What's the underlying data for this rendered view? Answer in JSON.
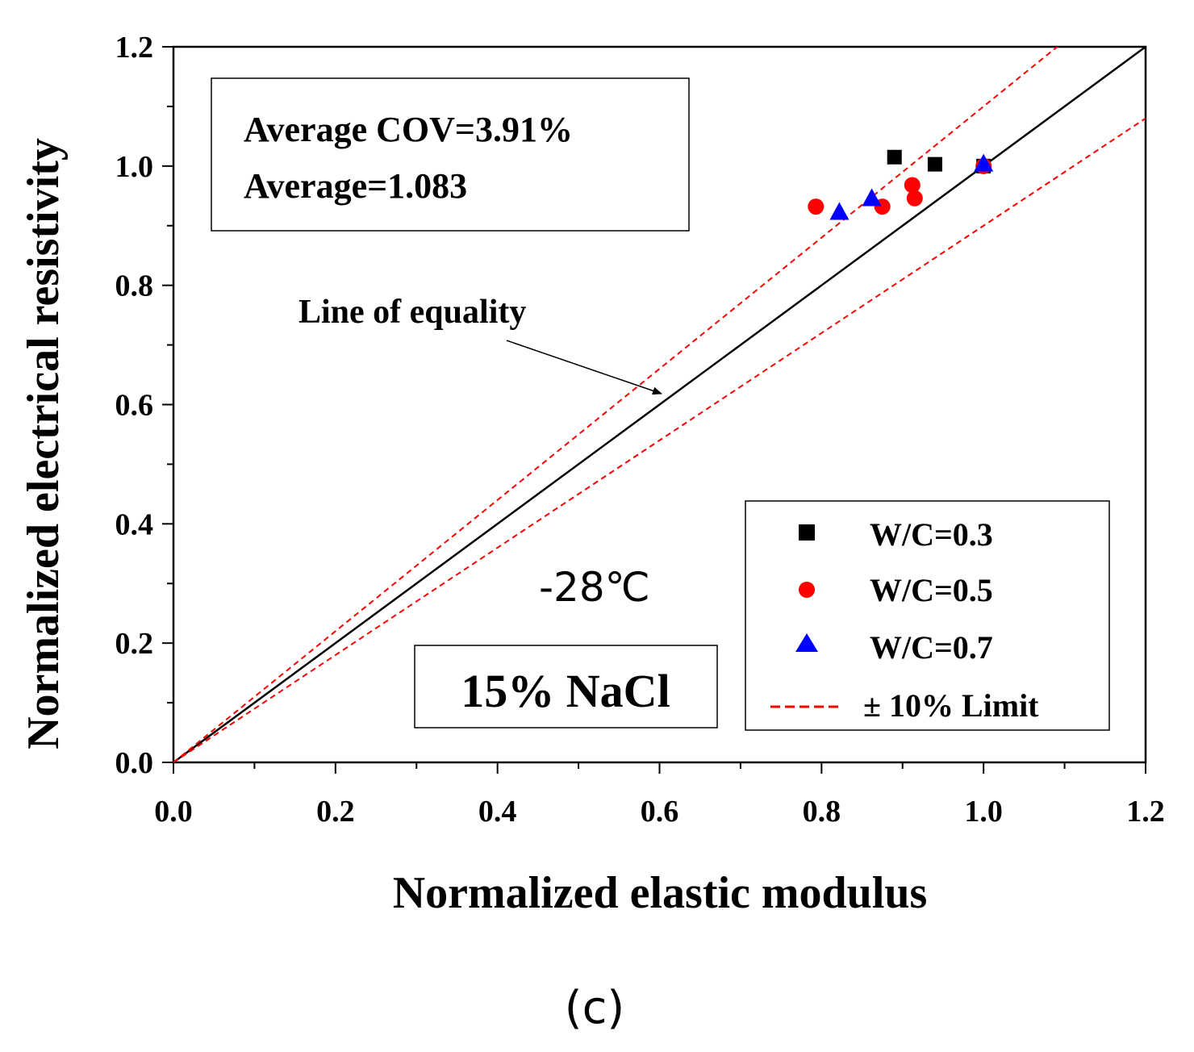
{
  "chart_data": {
    "type": "scatter",
    "title": "",
    "xlabel": "Normalized elastic modulus",
    "ylabel": "Normalized electrical resistivity",
    "xlim": [
      0,
      1.2
    ],
    "ylim": [
      0,
      1.2
    ],
    "xticks": [
      "0.0",
      "0.2",
      "0.4",
      "0.6",
      "0.8",
      "1.0",
      "1.2"
    ],
    "yticks": [
      "0.0",
      "0.2",
      "0.4",
      "0.6",
      "0.8",
      "1.0",
      "1.2"
    ],
    "grid": false,
    "series": [
      {
        "name": "W/C=0.3",
        "marker": "square",
        "color": "#000000",
        "points": [
          [
            0.89,
            1.015
          ],
          [
            0.94,
            1.003
          ],
          [
            1.0,
            1.0
          ]
        ]
      },
      {
        "name": "W/C=0.5",
        "marker": "circle",
        "color": "#ff0000",
        "points": [
          [
            0.793,
            0.932
          ],
          [
            0.875,
            0.932
          ],
          [
            0.912,
            0.968
          ],
          [
            0.915,
            0.946
          ],
          [
            1.0,
            1.0
          ]
        ]
      },
      {
        "name": "W/C=0.7",
        "marker": "triangle",
        "color": "#0000ff",
        "points": [
          [
            0.822,
            0.922
          ],
          [
            0.862,
            0.945
          ],
          [
            1.0,
            1.003
          ]
        ]
      }
    ],
    "reference_lines": [
      {
        "name": "Line of equality",
        "slope": 1.0,
        "style": "solid",
        "color": "#000000"
      },
      {
        "name": "± 10% Limit",
        "slope_upper": 1.1,
        "slope_lower": 0.9,
        "style": "dashed",
        "color": "#ff0000"
      }
    ],
    "legend": {
      "position": "bottom-right",
      "entries": [
        "W/C=0.3",
        "W/C=0.5",
        "W/C=0.7",
        "± 10% Limit"
      ]
    },
    "annotations": {
      "stats_line1": "Average COV=3.91%",
      "stats_line2": "Average=1.083",
      "equality_label": "Line of equality",
      "temperature": "-28℃",
      "solution": "15% NaCl"
    },
    "panel_label": "(c)"
  }
}
